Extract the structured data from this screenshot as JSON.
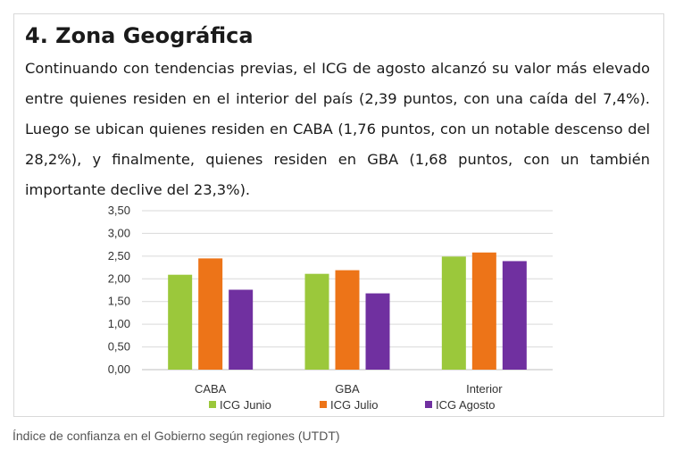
{
  "article": {
    "heading": "4. Zona Geográfica",
    "paragraph": "Continuando con tendencias previas, el ICG de agosto alcanzó su valor más elevado entre quienes residen en el interior del país (2,39 puntos, con una caída del 7,4%). Luego se ubican quienes residen en CABA (1,76 puntos, con un notable descenso del 28,2%), y finalmente, quienes residen en GBA (1,68 puntos, con un también importante declive del 23,3%)."
  },
  "caption": "Índice de confianza en el Gobierno según regiones (UTDT)",
  "chart_data": {
    "type": "bar",
    "categories": [
      "CABA",
      "GBA",
      "Interior"
    ],
    "series": [
      {
        "name": "ICG Junio",
        "color": "#9bc83b",
        "values": [
          2.09,
          2.11,
          2.49
        ]
      },
      {
        "name": "ICG Julio",
        "color": "#ed7418",
        "values": [
          2.45,
          2.19,
          2.58
        ]
      },
      {
        "name": "ICG Agosto",
        "color": "#7030a0",
        "values": [
          1.76,
          1.68,
          2.39
        ]
      }
    ],
    "ylim": [
      0,
      3.5
    ],
    "yticks": [
      "0,00",
      "0,50",
      "1,00",
      "1,50",
      "2,00",
      "2,50",
      "3,00",
      "3,50"
    ],
    "ytick_values": [
      0,
      0.5,
      1,
      1.5,
      2,
      2.5,
      3,
      3.5
    ],
    "grid": true,
    "legend_position": "bottom"
  }
}
